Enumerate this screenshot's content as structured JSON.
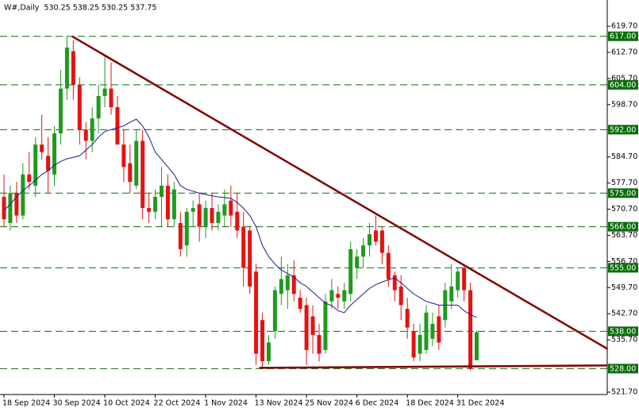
{
  "chart_data": {
    "type": "candlestick",
    "title": "W#,Daily  530.25 538.25 530.25 537.75",
    "categories": [
      "18 Sep 2024",
      null,
      null,
      null,
      null,
      null,
      null,
      null,
      "30 Sep 2024",
      null,
      null,
      null,
      null,
      null,
      null,
      null,
      "10 Oct 2024",
      null,
      null,
      null,
      null,
      null,
      null,
      null,
      "22 Oct 2024",
      null,
      null,
      null,
      null,
      null,
      null,
      null,
      "1 Nov 2024",
      null,
      null,
      null,
      null,
      null,
      null,
      null,
      "13 Nov 2024",
      null,
      null,
      null,
      null,
      null,
      null,
      null,
      "25 Nov 2024",
      null,
      null,
      null,
      null,
      null,
      null,
      null,
      "6 Dec 2024",
      null,
      null,
      null,
      null,
      null,
      null,
      null,
      "18 Dec 2024",
      null,
      null,
      null,
      null,
      null,
      null,
      null,
      "31 Dec 2024",
      null,
      null,
      null
    ],
    "ohlc": [
      [
        574,
        580,
        566,
        568
      ],
      [
        567,
        577,
        565,
        575
      ],
      [
        575,
        578,
        567,
        569
      ],
      [
        569,
        583,
        568,
        580
      ],
      [
        580,
        586,
        576,
        578
      ],
      [
        577,
        590,
        574,
        588
      ],
      [
        588,
        596,
        584,
        586
      ],
      [
        585,
        590,
        575,
        581
      ],
      [
        580,
        593,
        577,
        591
      ],
      [
        591,
        608,
        588,
        603
      ],
      [
        603,
        617,
        600,
        614
      ],
      [
        613,
        616,
        600,
        604
      ],
      [
        604,
        606,
        588,
        592
      ],
      [
        592,
        594,
        584,
        589
      ],
      [
        589,
        598,
        586,
        595
      ],
      [
        595,
        604,
        591,
        601
      ],
      [
        601,
        612,
        598,
        603
      ],
      [
        603,
        610,
        596,
        598
      ],
      [
        598,
        601,
        588,
        588
      ],
      [
        588,
        592,
        578,
        582
      ],
      [
        583,
        588,
        575,
        578
      ],
      [
        577,
        592,
        576,
        589
      ],
      [
        589,
        592,
        568,
        571
      ],
      [
        571,
        575,
        567,
        570
      ],
      [
        570,
        576,
        568,
        574
      ],
      [
        574,
        582,
        566,
        577
      ],
      [
        577,
        580,
        566,
        568
      ],
      [
        568,
        578,
        566,
        576
      ],
      [
        567,
        570,
        558,
        560
      ],
      [
        561,
        571,
        558,
        570
      ],
      [
        570,
        573,
        566,
        571
      ],
      [
        572,
        575,
        562,
        566
      ],
      [
        566,
        573,
        563,
        571
      ],
      [
        571,
        575,
        565,
        567
      ],
      [
        567,
        572,
        565,
        570
      ],
      [
        569,
        576,
        566,
        572
      ],
      [
        573,
        577,
        566,
        569
      ],
      [
        570,
        575,
        563,
        565
      ],
      [
        566,
        570,
        550,
        555
      ],
      [
        565,
        566,
        548,
        550
      ],
      [
        554,
        556,
        529,
        532
      ],
      [
        541,
        543,
        528,
        530
      ],
      [
        530,
        537,
        529,
        535
      ],
      [
        538,
        550,
        536,
        549
      ],
      [
        548,
        558,
        545,
        552
      ],
      [
        549,
        556,
        544,
        553
      ],
      [
        553,
        557,
        546,
        548
      ],
      [
        547,
        549,
        543,
        544
      ],
      [
        545,
        547,
        529,
        533
      ],
      [
        542,
        545,
        532,
        537
      ],
      [
        537,
        540,
        530,
        532
      ],
      [
        533,
        548,
        532,
        546
      ],
      [
        546,
        552,
        544,
        549
      ],
      [
        548,
        550,
        544,
        547
      ],
      [
        546,
        551,
        544,
        549
      ],
      [
        548,
        562,
        546,
        560
      ],
      [
        555,
        560,
        552,
        558
      ],
      [
        558,
        563,
        555,
        561
      ],
      [
        561,
        567,
        558,
        564
      ],
      [
        565,
        569,
        561,
        562
      ],
      [
        565,
        566,
        556,
        559
      ],
      [
        559,
        561,
        550,
        552
      ],
      [
        553,
        554,
        546,
        549
      ],
      [
        550,
        553,
        541,
        545
      ],
      [
        544,
        547,
        536,
        539
      ],
      [
        538,
        540,
        530,
        531
      ],
      [
        532,
        540,
        530,
        537
      ],
      [
        533,
        545,
        532,
        543
      ],
      [
        536,
        543,
        534,
        540
      ],
      [
        542,
        545,
        533,
        535
      ],
      [
        541,
        551,
        539,
        549
      ],
      [
        546,
        556,
        544,
        550
      ],
      [
        549,
        555,
        547,
        554
      ],
      [
        555,
        556,
        546,
        549
      ],
      [
        549,
        551,
        527.5,
        528
      ],
      [
        530.25,
        538.25,
        530.25,
        537.75
      ]
    ],
    "up_color": "#1f9a1f",
    "down_color": "#e51212",
    "moving_average": {
      "color": "#1c1c8c",
      "values": [
        570.4,
        572,
        574,
        575.7,
        577,
        578.5,
        580,
        581,
        582.5,
        583.5,
        584.2,
        584.6,
        585,
        586.5,
        588,
        590,
        591.5,
        592,
        592.5,
        593,
        594,
        594.8,
        593,
        590,
        586,
        584,
        582,
        580,
        577,
        576,
        575.5,
        575,
        574.6,
        574.3,
        574,
        573.8,
        573.6,
        572.5,
        571,
        569,
        566,
        561,
        558,
        556,
        554.4,
        553.5,
        552.5,
        551,
        550,
        548.5,
        547,
        545.5,
        544.9,
        543.5,
        543,
        545,
        546.5,
        548,
        549.5,
        550.5,
        551.2,
        551.8,
        552.3,
        551,
        549.5,
        548,
        547,
        546,
        545.5,
        545,
        545,
        545,
        545,
        543.5,
        542.5,
        541.7
      ]
    },
    "levels": [
      {
        "value": 617,
        "label": "617.00"
      },
      {
        "value": 604,
        "label": "604.00"
      },
      {
        "value": 592,
        "label": "592.00"
      },
      {
        "value": 575,
        "label": "575.00"
      },
      {
        "value": 566,
        "label": "566.00"
      },
      {
        "value": 555,
        "label": "555.00"
      },
      {
        "value": 538,
        "label": "538.00"
      },
      {
        "value": 528,
        "label": "528.00"
      }
    ],
    "level_color": "#0b6e0b",
    "trendlines": [
      {
        "color": "#800000",
        "x": [
          10.8,
          100.8
        ],
        "y": [
          617,
          528.3
        ]
      },
      {
        "color": "#800000",
        "x": [
          40.5,
          100.8
        ],
        "y": [
          528.2,
          528.9
        ]
      }
    ],
    "ylim": [
      521.06,
      626.72
    ],
    "yticks": [
      {
        "value": 619.7,
        "label": "619.70"
      },
      {
        "value": 612.7,
        "label": "612.70"
      },
      {
        "value": 605.7,
        "label": "605.70"
      },
      {
        "value": 598.7,
        "label": "598.70"
      },
      {
        "value": 584.7,
        "label": "584.70"
      },
      {
        "value": 577.7,
        "label": "577.70"
      },
      {
        "value": 570.7,
        "label": "570.70"
      },
      {
        "value": 563.7,
        "label": "563.70"
      },
      {
        "value": 556.7,
        "label": "556.70"
      },
      {
        "value": 549.7,
        "label": "549.70"
      },
      {
        "value": 542.7,
        "label": "542.70"
      },
      {
        "value": 535.7,
        "label": "535.70"
      },
      {
        "value": 521.7,
        "label": "521.70"
      }
    ]
  }
}
